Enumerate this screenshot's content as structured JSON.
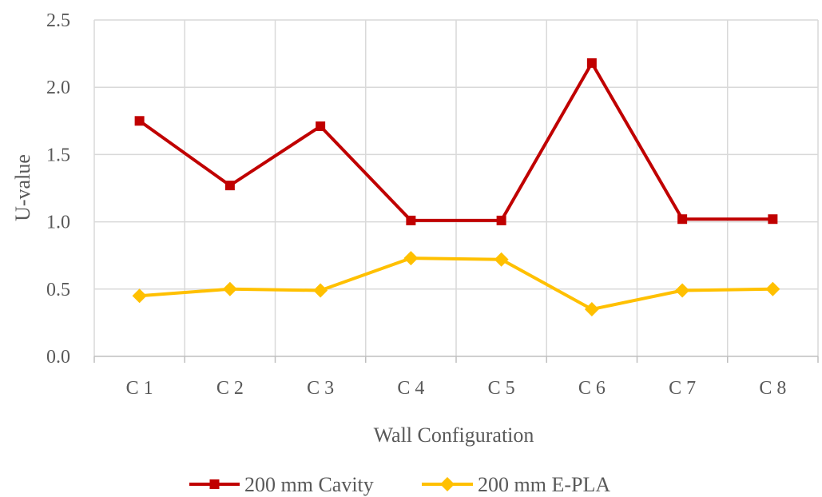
{
  "chart_data": {
    "type": "line",
    "categories": [
      "C 1",
      "C 2",
      "C 3",
      "C 4",
      "C 5",
      "C 6",
      "C 7",
      "C 8"
    ],
    "series": [
      {
        "name": "200 mm Cavity",
        "color": "#c00000",
        "marker": "square",
        "values": [
          1.75,
          1.27,
          1.71,
          1.01,
          1.01,
          2.18,
          1.02,
          1.02
        ]
      },
      {
        "name": "200 mm E-PLA",
        "color": "#ffc000",
        "marker": "diamond",
        "values": [
          0.45,
          0.5,
          0.49,
          0.73,
          0.72,
          0.35,
          0.49,
          0.5
        ]
      }
    ],
    "xlabel": "Wall Configuration",
    "ylabel": "U-value",
    "ylim": [
      0,
      2.5
    ],
    "yticks": [
      "0.0",
      "0.5",
      "1.0",
      "1.5",
      "2.0",
      "2.5"
    ],
    "grid": true,
    "legend_position": "bottom"
  }
}
